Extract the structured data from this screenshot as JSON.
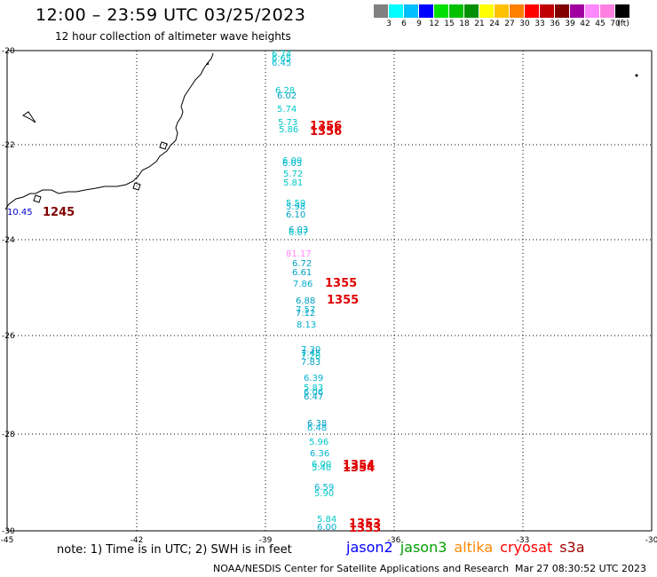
{
  "header": {
    "title": "12:00 – 23:59 UTC 03/25/2023",
    "subtitle": "12 hour collection of altimeter wave heights"
  },
  "scale": {
    "colors": [
      "#808080",
      "#00ffff",
      "#00bfff",
      "#0000ff",
      "#00e000",
      "#00c000",
      "#009000",
      "#ffff00",
      "#ffc000",
      "#ff8000",
      "#ff0000",
      "#c00000",
      "#800000",
      "#a000a0",
      "#ff88ff",
      "#ff80e0",
      "#000000"
    ],
    "labels": [
      "3",
      "6",
      "9",
      "12",
      "15",
      "18",
      "21",
      "24",
      "27",
      "30",
      "33",
      "36",
      "39",
      "42",
      "45",
      "70",
      "(ft)"
    ]
  },
  "axes": {
    "lat_labels": [
      "-20",
      "-22",
      "-24",
      "-26",
      "-28",
      "-30"
    ],
    "lon_labels": [
      "-45",
      "-42",
      "-39",
      "-36",
      "-33",
      "-30"
    ]
  },
  "observations": [
    {
      "t": "6.74",
      "c": "#00c8c8"
    },
    {
      "t": "6.65",
      "c": "#00c8c8"
    },
    {
      "t": "6.45",
      "c": "#00b8d8"
    },
    {
      "t": "6.28",
      "c": "#00c8c8"
    },
    {
      "t": "6.02",
      "c": "#00a0c0"
    },
    {
      "t": "5.74",
      "c": "#00c8c8"
    },
    {
      "t": "5.73",
      "c": "#00c8c8"
    },
    {
      "t": "5.86",
      "c": "#00c8c8"
    },
    {
      "t": "6.00",
      "c": "#00c8c8"
    },
    {
      "t": "6.03",
      "c": "#00b0d0"
    },
    {
      "t": "5.72",
      "c": "#00c8c8"
    },
    {
      "t": "5.81",
      "c": "#00c8c8"
    },
    {
      "t": "5.59",
      "c": "#00c8c8"
    },
    {
      "t": "5.98",
      "c": "#00b0d0"
    },
    {
      "t": "6.10",
      "c": "#00a0c0"
    },
    {
      "t": "6.03",
      "c": "#00a0c0"
    },
    {
      "t": "6.07",
      "c": "#00c8c8"
    },
    {
      "t": "81.17",
      "c": "#ff88ff"
    },
    {
      "t": "6.72",
      "c": "#00a0c0"
    },
    {
      "t": "6.61",
      "c": "#00a0c0"
    },
    {
      "t": "7.86",
      "c": "#00b0d0"
    },
    {
      "t": "6.88",
      "c": "#00a0c0"
    },
    {
      "t": "7.57",
      "c": "#00b0d0"
    },
    {
      "t": "7.12",
      "c": "#00a0c0"
    },
    {
      "t": "8.13",
      "c": "#00b0d0"
    },
    {
      "t": "7.30",
      "c": "#00b0d0"
    },
    {
      "t": "7.45",
      "c": "#00a0c0"
    },
    {
      "t": "7.28",
      "c": "#00c8c8"
    },
    {
      "t": "7.83",
      "c": "#00a0c0"
    },
    {
      "t": "6.39",
      "c": "#00b0d0"
    },
    {
      "t": "5.83",
      "c": "#00c8c8"
    },
    {
      "t": "6.06",
      "c": "#00b0d0"
    },
    {
      "t": "6.47",
      "c": "#00a0c0"
    },
    {
      "t": "6.38",
      "c": "#00a0c0"
    },
    {
      "t": "6.48",
      "c": "#00b0d0"
    },
    {
      "t": "5.96",
      "c": "#00c8c8"
    },
    {
      "t": "6.36",
      "c": "#00b0d0"
    },
    {
      "t": "6.00",
      "c": "#00c8c8"
    },
    {
      "t": "5.40",
      "c": "#00c8c8"
    },
    {
      "t": "6.59",
      "c": "#00b0d0"
    },
    {
      "t": "5.90",
      "c": "#00c8c8"
    },
    {
      "t": "5.84",
      "c": "#00c8c8"
    },
    {
      "t": "6.00",
      "c": "#00b0d0"
    },
    {
      "t": "10.45",
      "c": "#0000cc"
    }
  ],
  "pass_times": [
    {
      "t": "1356",
      "c": "#e00000"
    },
    {
      "t": "1356",
      "c": "#e00000"
    },
    {
      "t": "1355",
      "c": "#e00000"
    },
    {
      "t": "1355",
      "c": "#e00000"
    },
    {
      "t": "1354",
      "c": "#e00000"
    },
    {
      "t": "1354",
      "c": "#e00000"
    },
    {
      "t": "1353",
      "c": "#e00000"
    },
    {
      "t": "1353",
      "c": "#e00000"
    },
    {
      "t": "1245",
      "c": "#800000"
    }
  ],
  "footer": {
    "note": "note:  1) Time is in UTC;  2) SWH is in feet",
    "credit": "NOAA/NESDIS Center for Satellite Applications and Research",
    "timestamp": "Mar 27 08:30:52 UTC 2023",
    "legend": [
      {
        "name": "jason2",
        "color": "#0000ff"
      },
      {
        "name": "jason3",
        "color": "#00a000"
      },
      {
        "name": "altika",
        "color": "#ff8800"
      },
      {
        "name": "cryosat",
        "color": "#ff0000"
      },
      {
        "name": "s3a",
        "color": "#a00000"
      }
    ]
  }
}
